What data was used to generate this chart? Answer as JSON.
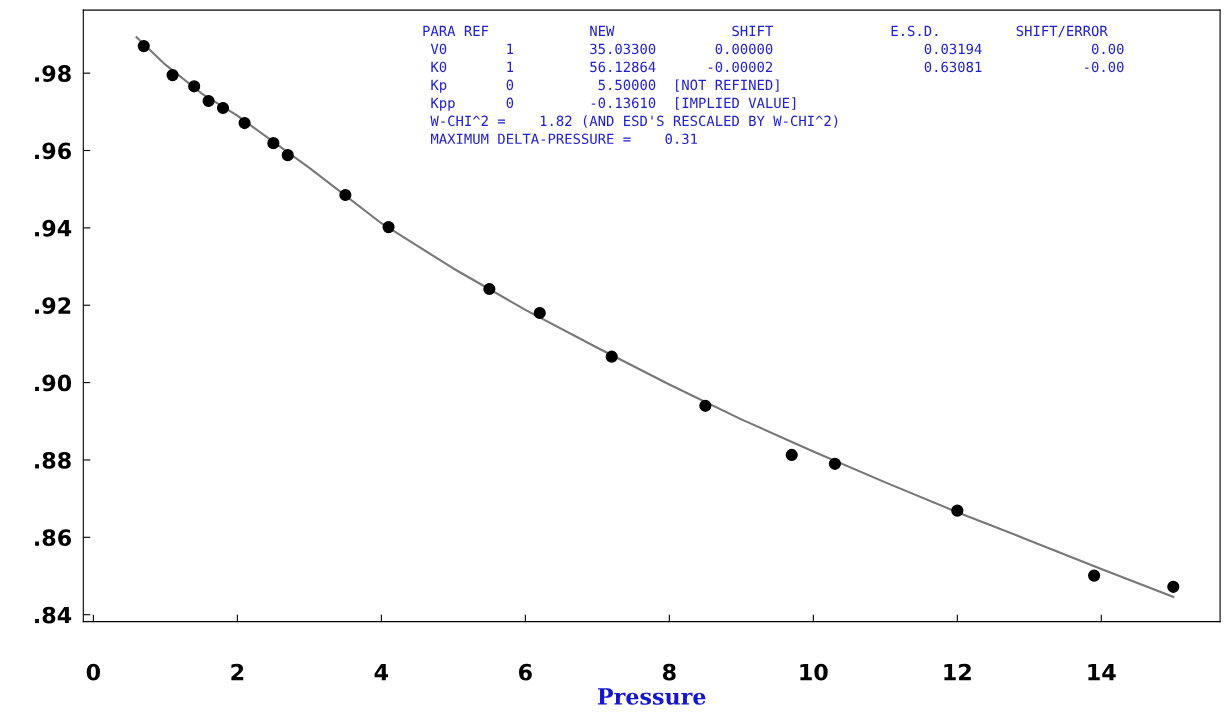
{
  "chart_data": {
    "type": "scatter",
    "xlabel": "Pressure",
    "series": [
      {
        "color": "#000000",
        "marker": "circle",
        "x": [
          0.7,
          1.1,
          1.4,
          1.6,
          1.8,
          2.1,
          2.5,
          2.7,
          3.5,
          4.1,
          5.5,
          6.2,
          7.2,
          8.5,
          9.7,
          10.3,
          12.0,
          13.9,
          15.0
        ],
        "values": [
          0.987,
          0.9795,
          0.9766,
          0.9728,
          0.971,
          0.9671,
          0.9619,
          0.9588,
          0.9485,
          0.9402,
          0.9242,
          0.918,
          0.9067,
          0.894,
          0.8813,
          0.879,
          0.8669,
          0.8501,
          0.8472
        ]
      },
      {
        "type": "line",
        "color": "#777777",
        "marker": "none",
        "x": [
          0.6,
          1.0,
          1.5,
          2.0,
          3.0,
          4.0,
          5.0,
          6.0,
          7.0,
          8.0,
          9.0,
          10.0,
          11.0,
          12.0,
          13.0,
          14.0,
          15.0
        ],
        "values": [
          0.9893,
          0.9822,
          0.9748,
          0.969,
          0.9555,
          0.9412,
          0.9295,
          0.9188,
          0.909,
          0.8995,
          0.8905,
          0.8822,
          0.8742,
          0.8665,
          0.8592,
          0.8518,
          0.8446
        ]
      }
    ],
    "xlim": [
      -0.14,
      15.65
    ],
    "ylim": [
      0.8382,
      0.9963
    ],
    "xticks": [
      0,
      2,
      4,
      6,
      8,
      10,
      12,
      14
    ],
    "yticks": [
      {
        "value": 0.84,
        "label": ".84"
      },
      {
        "value": 0.86,
        "label": ".86"
      },
      {
        "value": 0.88,
        "label": ".88"
      },
      {
        "value": 0.9,
        "label": ".90"
      },
      {
        "value": 0.92,
        "label": ".92"
      },
      {
        "value": 0.94,
        "label": ".94"
      },
      {
        "value": 0.96,
        "label": ".96"
      },
      {
        "value": 0.98,
        "label": ".98"
      }
    ],
    "grid": false,
    "legend": false,
    "annotations": [
      "PARA REF            NEW              SHIFT              E.S.D.         SHIFT/ERROR",
      " V0       1         35.03300       0.00000                  0.03194             0.00",
      " K0       1         56.12864      -0.00002                  0.63081            -0.00",
      " Kp       0          5.50000  [NOT REFINED]",
      " Kpp      0         -0.13610  [IMPLIED VALUE]",
      " W-CHI^2 =    1.82 (AND ESD'S RESCALED BY W-CHI^2)",
      " MAXIMUM DELTA-PRESSURE =    0.31"
    ]
  }
}
